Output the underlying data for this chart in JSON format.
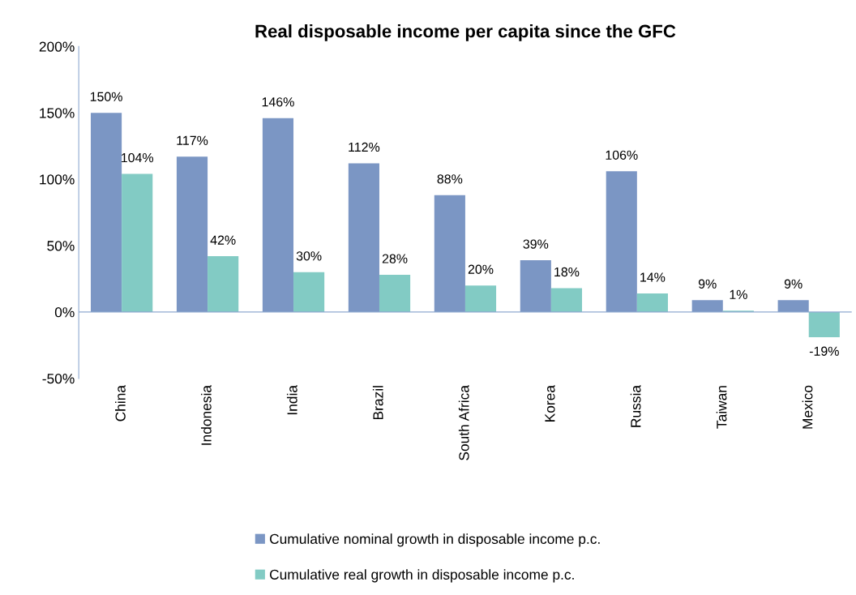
{
  "chart_data": {
    "type": "bar",
    "title": "Real disposable income per capita since the GFC",
    "categories": [
      "China",
      "Indonesia",
      "India",
      "Brazil",
      "South Africa",
      "Korea",
      "Russia",
      "Taiwan",
      "Mexico"
    ],
    "series": [
      {
        "name": "Cumulative nominal growth in disposable income p.c.",
        "color": "#7b96c4",
        "values": [
          150,
          117,
          146,
          112,
          88,
          39,
          106,
          9,
          9
        ],
        "value_labels": [
          "150%",
          "117%",
          "146%",
          "112%",
          "88%",
          "39%",
          "106%",
          "9%",
          "9%"
        ]
      },
      {
        "name": "Cumulative real growth in disposable income p.c.",
        "color": "#82cbc4",
        "values": [
          104,
          42,
          30,
          28,
          20,
          18,
          14,
          1,
          -19
        ],
        "value_labels": [
          "104%",
          "42%",
          "30%",
          "28%",
          "20%",
          "18%",
          "14%",
          "1%",
          "-19%"
        ]
      }
    ],
    "ylim": [
      -50,
      200
    ],
    "yticks": [
      {
        "value": -50,
        "label": "-50%"
      },
      {
        "value": 0,
        "label": "0%"
      },
      {
        "value": 50,
        "label": "50%"
      },
      {
        "value": 100,
        "label": "100%"
      },
      {
        "value": 150,
        "label": "150%"
      },
      {
        "value": 200,
        "label": "200%"
      }
    ],
    "ref_lines": [
      {
        "axis": "y",
        "value": 0,
        "color": "#8faad0"
      }
    ],
    "grid": false,
    "legend": "bottom"
  }
}
